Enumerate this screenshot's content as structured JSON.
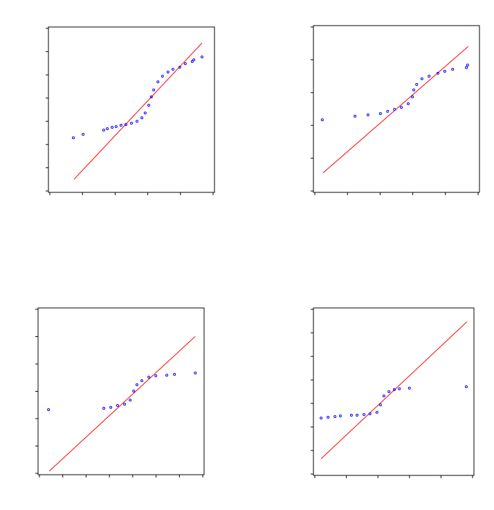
{
  "chart_data": [
    {
      "type": "scatter",
      "marker_color": "#0000ff",
      "line_color": "#ff0000",
      "xlim": [
        0,
        5
      ],
      "ylim": [
        0,
        7
      ],
      "xticks": [
        0,
        1,
        2,
        3,
        4,
        5
      ],
      "yticks": [
        0,
        1,
        2,
        3,
        4,
        5,
        6,
        7
      ],
      "x": [
        0.72,
        1.02,
        1.65,
        1.76,
        1.91,
        2.03,
        2.18,
        2.33,
        2.5,
        2.67,
        2.82,
        2.92,
        3.03,
        3.11,
        3.18,
        3.31,
        3.45,
        3.62,
        3.77,
        3.98,
        4.15,
        4.36,
        4.41,
        4.66
      ],
      "y": [
        2.29,
        2.44,
        2.62,
        2.68,
        2.74,
        2.77,
        2.83,
        2.86,
        2.92,
        3.0,
        3.15,
        3.36,
        3.69,
        4.05,
        4.35,
        4.7,
        4.94,
        5.12,
        5.24,
        5.33,
        5.48,
        5.57,
        5.65,
        5.77
      ],
      "line": {
        "x": [
          0.74,
          4.66
        ],
        "y": [
          0.5,
          6.37
        ]
      }
    },
    {
      "type": "scatter",
      "marker_color": "#0000ff",
      "line_color": "#ff0000",
      "xlim": [
        0,
        5
      ],
      "ylim": [
        0,
        5
      ],
      "xticks": [
        0,
        1,
        2,
        3,
        4,
        5
      ],
      "yticks": [
        0,
        1,
        2,
        3,
        4,
        5
      ],
      "x": [
        0.23,
        1.23,
        1.63,
        2.01,
        2.23,
        2.44,
        2.65,
        2.86,
        2.99,
        3.03,
        3.12,
        3.28,
        3.5,
        3.77,
        3.98,
        4.22,
        4.64,
        4.68
      ],
      "y": [
        2.17,
        2.28,
        2.32,
        2.36,
        2.43,
        2.49,
        2.55,
        2.66,
        2.87,
        3.08,
        3.25,
        3.42,
        3.5,
        3.59,
        3.65,
        3.71,
        3.76,
        3.84
      ],
      "line": {
        "x": [
          0.25,
          4.7
        ],
        "y": [
          0.55,
          4.41
        ]
      }
    },
    {
      "type": "scatter",
      "marker_color": "#0000ff",
      "line_color": "#ff0000",
      "xlim": [
        0,
        7
      ],
      "ylim": [
        0,
        6
      ],
      "xticks": [
        0,
        1,
        2,
        3,
        4,
        5,
        6,
        7
      ],
      "yticks": [
        0,
        1,
        2,
        3,
        4,
        5,
        6
      ],
      "x": [
        0.39,
        2.76,
        3.06,
        3.35,
        3.65,
        3.89,
        4.04,
        4.18,
        4.39,
        4.69,
        4.99,
        5.46,
        5.79,
        6.68
      ],
      "y": [
        2.33,
        2.38,
        2.41,
        2.48,
        2.53,
        2.68,
        3.01,
        3.24,
        3.39,
        3.52,
        3.57,
        3.59,
        3.62,
        3.67
      ],
      "line": {
        "x": [
          0.42,
          6.68
        ],
        "y": [
          0.08,
          5.01
        ]
      }
    },
    {
      "type": "scatter",
      "marker_color": "#0000ff",
      "line_color": "#ff0000",
      "xlim": [
        0,
        5
      ],
      "ylim": [
        0,
        7
      ],
      "xticks": [
        0,
        1,
        2,
        3,
        4,
        5
      ],
      "yticks": [
        0,
        1,
        2,
        3,
        4,
        5,
        6,
        7
      ],
      "x": [
        0.2,
        0.42,
        0.64,
        0.81,
        1.16,
        1.34,
        1.56,
        1.75,
        1.97,
        2.08,
        2.19,
        2.35,
        2.52,
        2.68,
        3.0,
        4.8
      ],
      "y": [
        2.38,
        2.41,
        2.44,
        2.47,
        2.5,
        2.5,
        2.53,
        2.56,
        2.62,
        2.94,
        3.32,
        3.5,
        3.59,
        3.62,
        3.65,
        3.71
      ],
      "line": {
        "x": [
          0.2,
          4.82
        ],
        "y": [
          0.65,
          6.47
        ]
      }
    }
  ]
}
